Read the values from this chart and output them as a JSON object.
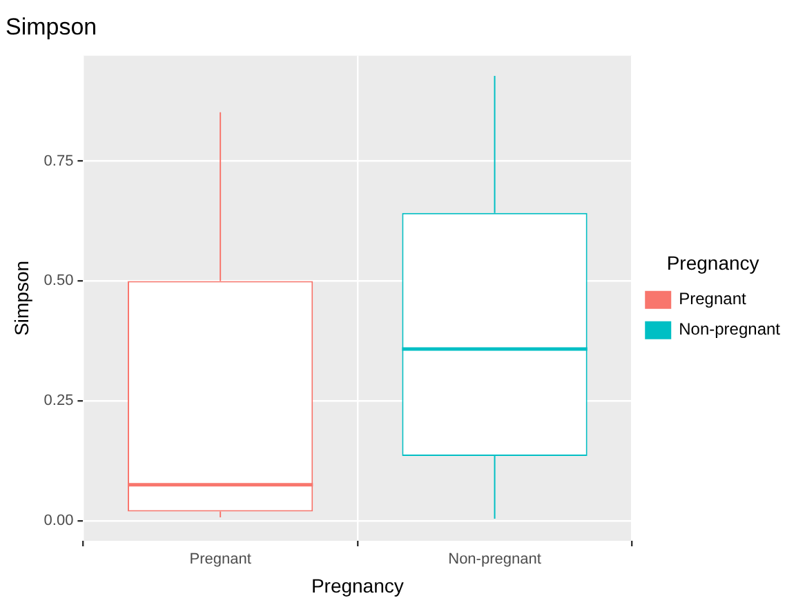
{
  "chart_data": {
    "type": "box",
    "title": "Simpson",
    "xlabel": "Pregnancy",
    "ylabel": "Simpson",
    "legend_title": "Pregnancy",
    "legend": "right",
    "grid": true,
    "categories": [
      "Pregnant",
      "Non-pregnant"
    ],
    "series": [
      {
        "name": "Pregnant",
        "color": "#f8766d",
        "boxes": [
          {
            "low": 0.007,
            "q1": 0.019,
            "median": 0.075,
            "q3": 0.5,
            "high": 0.852
          },
          null
        ]
      },
      {
        "name": "Non-pregnant",
        "color": "#00bfc4",
        "boxes": [
          null,
          {
            "low": 0.004,
            "q1": 0.135,
            "median": 0.358,
            "q3": 0.642,
            "high": 0.928
          }
        ]
      }
    ],
    "ylim": [
      -0.042,
      0.97
    ],
    "yticks": [
      {
        "value": 0,
        "label": "0.00"
      },
      {
        "value": 0.25,
        "label": "0.25"
      },
      {
        "value": 0.5,
        "label": "0.50"
      },
      {
        "value": 0.75,
        "label": "0.75"
      }
    ]
  }
}
